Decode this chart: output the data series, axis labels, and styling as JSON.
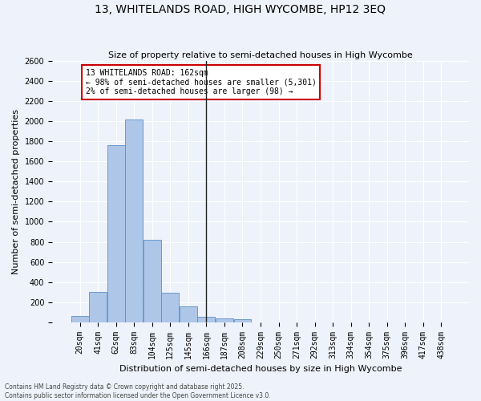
{
  "title": "13, WHITELANDS ROAD, HIGH WYCOMBE, HP12 3EQ",
  "subtitle": "Size of property relative to semi-detached houses in High Wycombe",
  "xlabel": "Distribution of semi-detached houses by size in High Wycombe",
  "ylabel": "Number of semi-detached properties",
  "footer_line1": "Contains HM Land Registry data © Crown copyright and database right 2025.",
  "footer_line2": "Contains public sector information licensed under the Open Government Licence v3.0.",
  "categories": [
    "20sqm",
    "41sqm",
    "62sqm",
    "83sqm",
    "104sqm",
    "125sqm",
    "145sqm",
    "166sqm",
    "187sqm",
    "208sqm",
    "229sqm",
    "250sqm",
    "271sqm",
    "292sqm",
    "313sqm",
    "334sqm",
    "354sqm",
    "375sqm",
    "396sqm",
    "417sqm",
    "438sqm"
  ],
  "values": [
    60,
    300,
    1760,
    2020,
    820,
    290,
    155,
    50,
    40,
    30,
    0,
    0,
    0,
    0,
    0,
    0,
    0,
    0,
    0,
    0,
    0
  ],
  "bar_color": "#aec6e8",
  "bar_edge_color": "#5b8fc9",
  "annotation_title": "13 WHITELANDS ROAD: 162sqm",
  "annotation_line1": "← 98% of semi-detached houses are smaller (5,301)",
  "annotation_line2": "2% of semi-detached houses are larger (98) →",
  "annotation_box_facecolor": "#ffffff",
  "annotation_box_edgecolor": "#cc0000",
  "vline_color": "#222222",
  "background_color": "#eef2fa",
  "grid_color": "#ffffff",
  "ylim": [
    0,
    2600
  ],
  "yticks": [
    0,
    200,
    400,
    600,
    800,
    1000,
    1200,
    1400,
    1600,
    1800,
    2000,
    2200,
    2400,
    2600
  ],
  "title_fontsize": 10,
  "subtitle_fontsize": 8,
  "ylabel_fontsize": 8,
  "xlabel_fontsize": 8,
  "tick_fontsize": 7,
  "annot_fontsize": 7,
  "footer_fontsize": 5.5
}
